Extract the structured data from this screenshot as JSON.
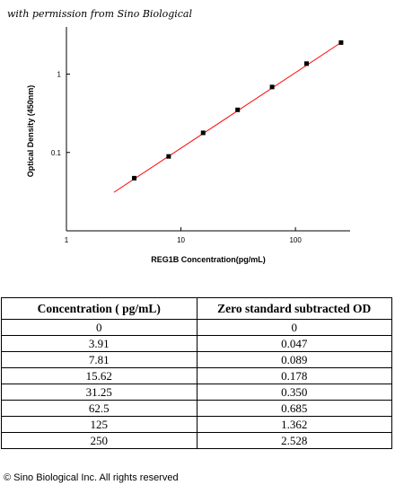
{
  "attribution": "with permission from Sino Biological",
  "chart_data": {
    "type": "scatter",
    "xlabel": "REG1B  Concentration(pg/mL)",
    "ylabel": "Optical Density (450nm)",
    "x_scale": "log",
    "y_scale": "log",
    "xlim": [
      1,
      300
    ],
    "ylim": [
      0.01,
      4
    ],
    "x_ticks": [
      {
        "value": 1,
        "label": "1"
      },
      {
        "value": 10,
        "label": "10"
      },
      {
        "value": 100,
        "label": "100"
      }
    ],
    "y_ticks": [
      {
        "value": 0.1,
        "label": "0.1"
      },
      {
        "value": 1,
        "label": "1"
      }
    ],
    "points": {
      "x": [
        3.91,
        7.81,
        15.62,
        31.25,
        62.5,
        125,
        250
      ],
      "y": [
        0.047,
        0.089,
        0.178,
        0.35,
        0.685,
        1.362,
        2.528
      ]
    },
    "fit_line": {
      "x": [
        2.6,
        250
      ],
      "y": [
        0.031,
        2.528
      ],
      "color": "#ff0000"
    },
    "grid": false,
    "marker_color": "#000000"
  },
  "table": {
    "headers": [
      "Concentration ( pg/mL)",
      "Zero standard subtracted OD"
    ],
    "rows": [
      [
        "0",
        "0"
      ],
      [
        "3.91",
        "0.047"
      ],
      [
        "7.81",
        "0.089"
      ],
      [
        "15.62",
        "0.178"
      ],
      [
        "31.25",
        "0.350"
      ],
      [
        "62.5",
        "0.685"
      ],
      [
        "125",
        "1.362"
      ],
      [
        "250",
        "2.528"
      ]
    ]
  },
  "copyright": "© Sino Biological Inc. All rights reserved"
}
